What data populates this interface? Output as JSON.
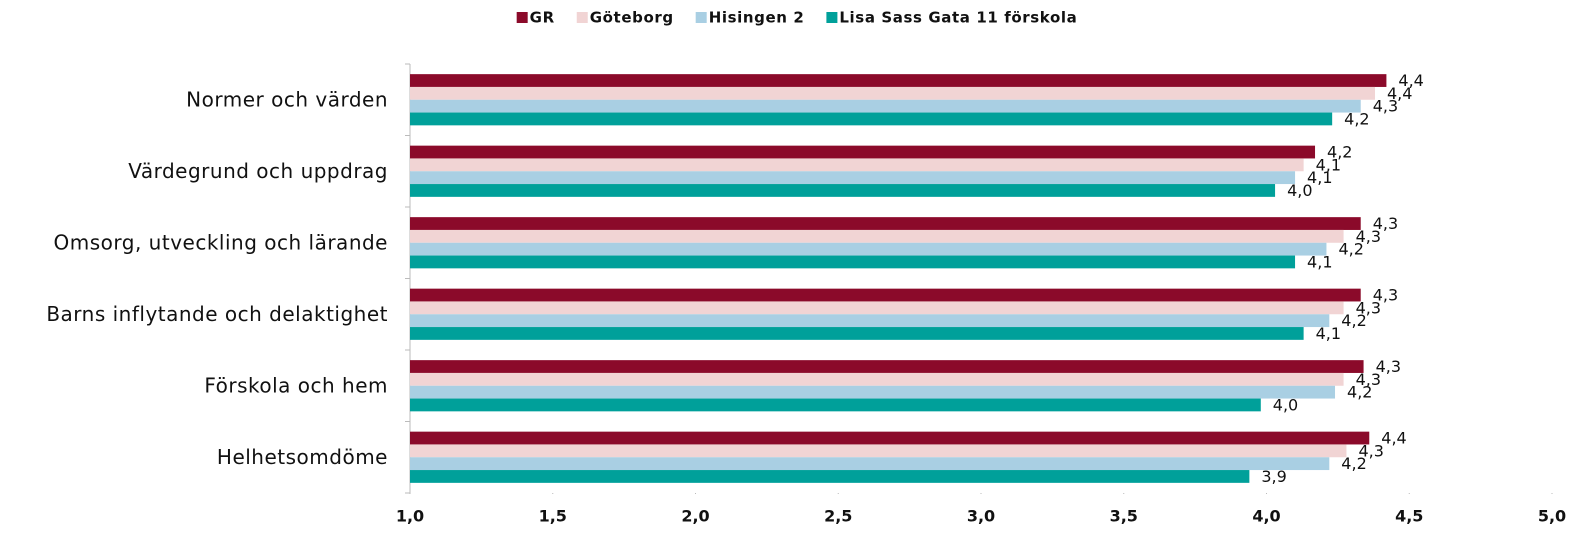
{
  "chart_data": {
    "type": "hbar",
    "categories": [
      "Normer och värden",
      "Värdegrund och uppdrag",
      "Omsorg, utveckling och lärande",
      "Barns inflytande och delaktighet",
      "Förskola och hem",
      "Helhetsomdöme"
    ],
    "series": [
      {
        "name": "GR",
        "color": "#8b0a2a",
        "values": [
          4.42,
          4.17,
          4.33,
          4.33,
          4.34,
          4.36
        ],
        "value_labels": [
          "4,4",
          "4,2",
          "4,3",
          "4,3",
          "4,3",
          "4,4"
        ]
      },
      {
        "name": "Göteborg",
        "color": "#f1d4d4",
        "values": [
          4.38,
          4.13,
          4.27,
          4.27,
          4.27,
          4.28
        ],
        "value_labels": [
          "4,4",
          "4,1",
          "4,3",
          "4,3",
          "4,3",
          "4,3"
        ]
      },
      {
        "name": "Hisingen 2",
        "color": "#a9cfe3",
        "values": [
          4.33,
          4.1,
          4.21,
          4.22,
          4.24,
          4.22
        ],
        "value_labels": [
          "4,3",
          "4,1",
          "4,2",
          "4,2",
          "4,2",
          "4,2"
        ]
      },
      {
        "name": "Lisa Sass Gata 11 förskola",
        "color": "#00a09a",
        "values": [
          4.23,
          4.03,
          4.1,
          4.13,
          3.98,
          3.94
        ],
        "value_labels": [
          "4,2",
          "4,0",
          "4,1",
          "4,1",
          "4,0",
          "3,9"
        ]
      }
    ],
    "xlim": [
      1.0,
      5.0
    ],
    "xticks": [
      {
        "value": 1.0,
        "label": "1,0"
      },
      {
        "value": 1.5,
        "label": "1,5"
      },
      {
        "value": 2.0,
        "label": "2,0"
      },
      {
        "value": 2.5,
        "label": "2,5"
      },
      {
        "value": 3.0,
        "label": "3,0"
      },
      {
        "value": 3.5,
        "label": "3,5"
      },
      {
        "value": 4.0,
        "label": "4,0"
      },
      {
        "value": 4.5,
        "label": "4,5"
      },
      {
        "value": 5.0,
        "label": "5,0"
      }
    ],
    "grid": false,
    "legend": "top"
  }
}
